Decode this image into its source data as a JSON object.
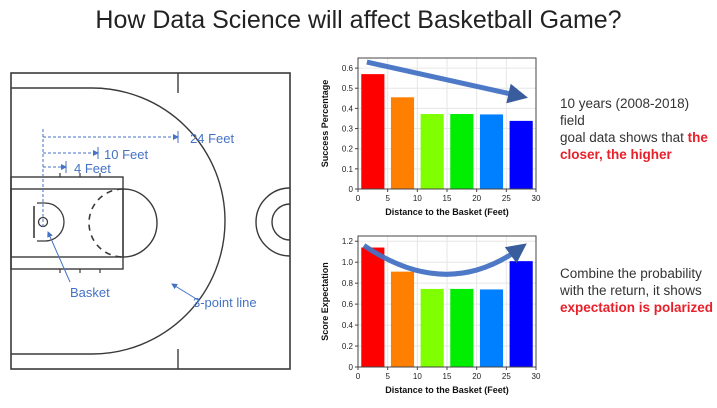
{
  "slide": {
    "title": "How Data Science will affect Basketball Game?"
  },
  "court": {
    "labels": {
      "ft24": "24 Feet",
      "ft10": "10 Feet",
      "ft4": "4 Feet",
      "basket": "Basket",
      "three_point": "3-point line"
    },
    "label_color": "#4472c4"
  },
  "captions": {
    "top": {
      "line1": "10 years (2008-2018) field",
      "line2_prefix": "goal data shows that ",
      "line2_highlight": "the",
      "line3_highlight": "closer, the higher"
    },
    "bottom": {
      "line1": "Combine the probability",
      "line2": "with the return, it shows",
      "line3_highlight": "expectation is polarized"
    },
    "highlight_color": "#e8202a"
  },
  "chart_data": [
    {
      "type": "bar",
      "categories": [
        "0-5",
        "5-10",
        "10-15",
        "15-20",
        "20-25",
        "25-30"
      ],
      "x": [
        2.5,
        7.5,
        12.5,
        17.5,
        22.5,
        27.5
      ],
      "values": [
        0.57,
        0.455,
        0.372,
        0.372,
        0.37,
        0.338
      ],
      "xlabel": "Distance to the Basket (Feet)",
      "ylabel": "Success Percentage",
      "xlim": [
        0,
        30
      ],
      "ylim": [
        0,
        0.65
      ],
      "xticks": [
        0,
        5,
        10,
        15,
        20,
        25,
        30
      ],
      "yticks": [
        0,
        0.1,
        0.2,
        0.3,
        0.4,
        0.5,
        0.6
      ],
      "ytick_labels": [
        "0",
        "0.1",
        "0.2",
        "0.3",
        "0.4",
        "0.5",
        "0.6"
      ],
      "colors": [
        "#ff0000",
        "#ff8000",
        "#80ff00",
        "#00ee00",
        "#0080ff",
        "#0000ff"
      ],
      "annotation": "downward-arrow"
    },
    {
      "type": "bar",
      "categories": [
        "0-5",
        "5-10",
        "10-15",
        "15-20",
        "20-25",
        "25-30"
      ],
      "x": [
        2.5,
        7.5,
        12.5,
        17.5,
        22.5,
        27.5
      ],
      "values": [
        1.14,
        0.91,
        0.745,
        0.745,
        0.74,
        1.01
      ],
      "xlabel": "Distance to the Basket (Feet)",
      "ylabel": "Score Expectation",
      "xlim": [
        0,
        30
      ],
      "ylim": [
        0,
        1.25
      ],
      "xticks": [
        0,
        5,
        10,
        15,
        20,
        25,
        30
      ],
      "yticks": [
        0,
        0.2,
        0.4,
        0.6,
        0.8,
        1.0,
        1.2
      ],
      "ytick_labels": [
        "0",
        "0.2",
        "0.4",
        "0.6",
        "0.8",
        "1.0",
        "1.2"
      ],
      "colors": [
        "#ff0000",
        "#ff8000",
        "#80ff00",
        "#00ee00",
        "#0080ff",
        "#0000ff"
      ],
      "annotation": "curved-arrow"
    }
  ]
}
